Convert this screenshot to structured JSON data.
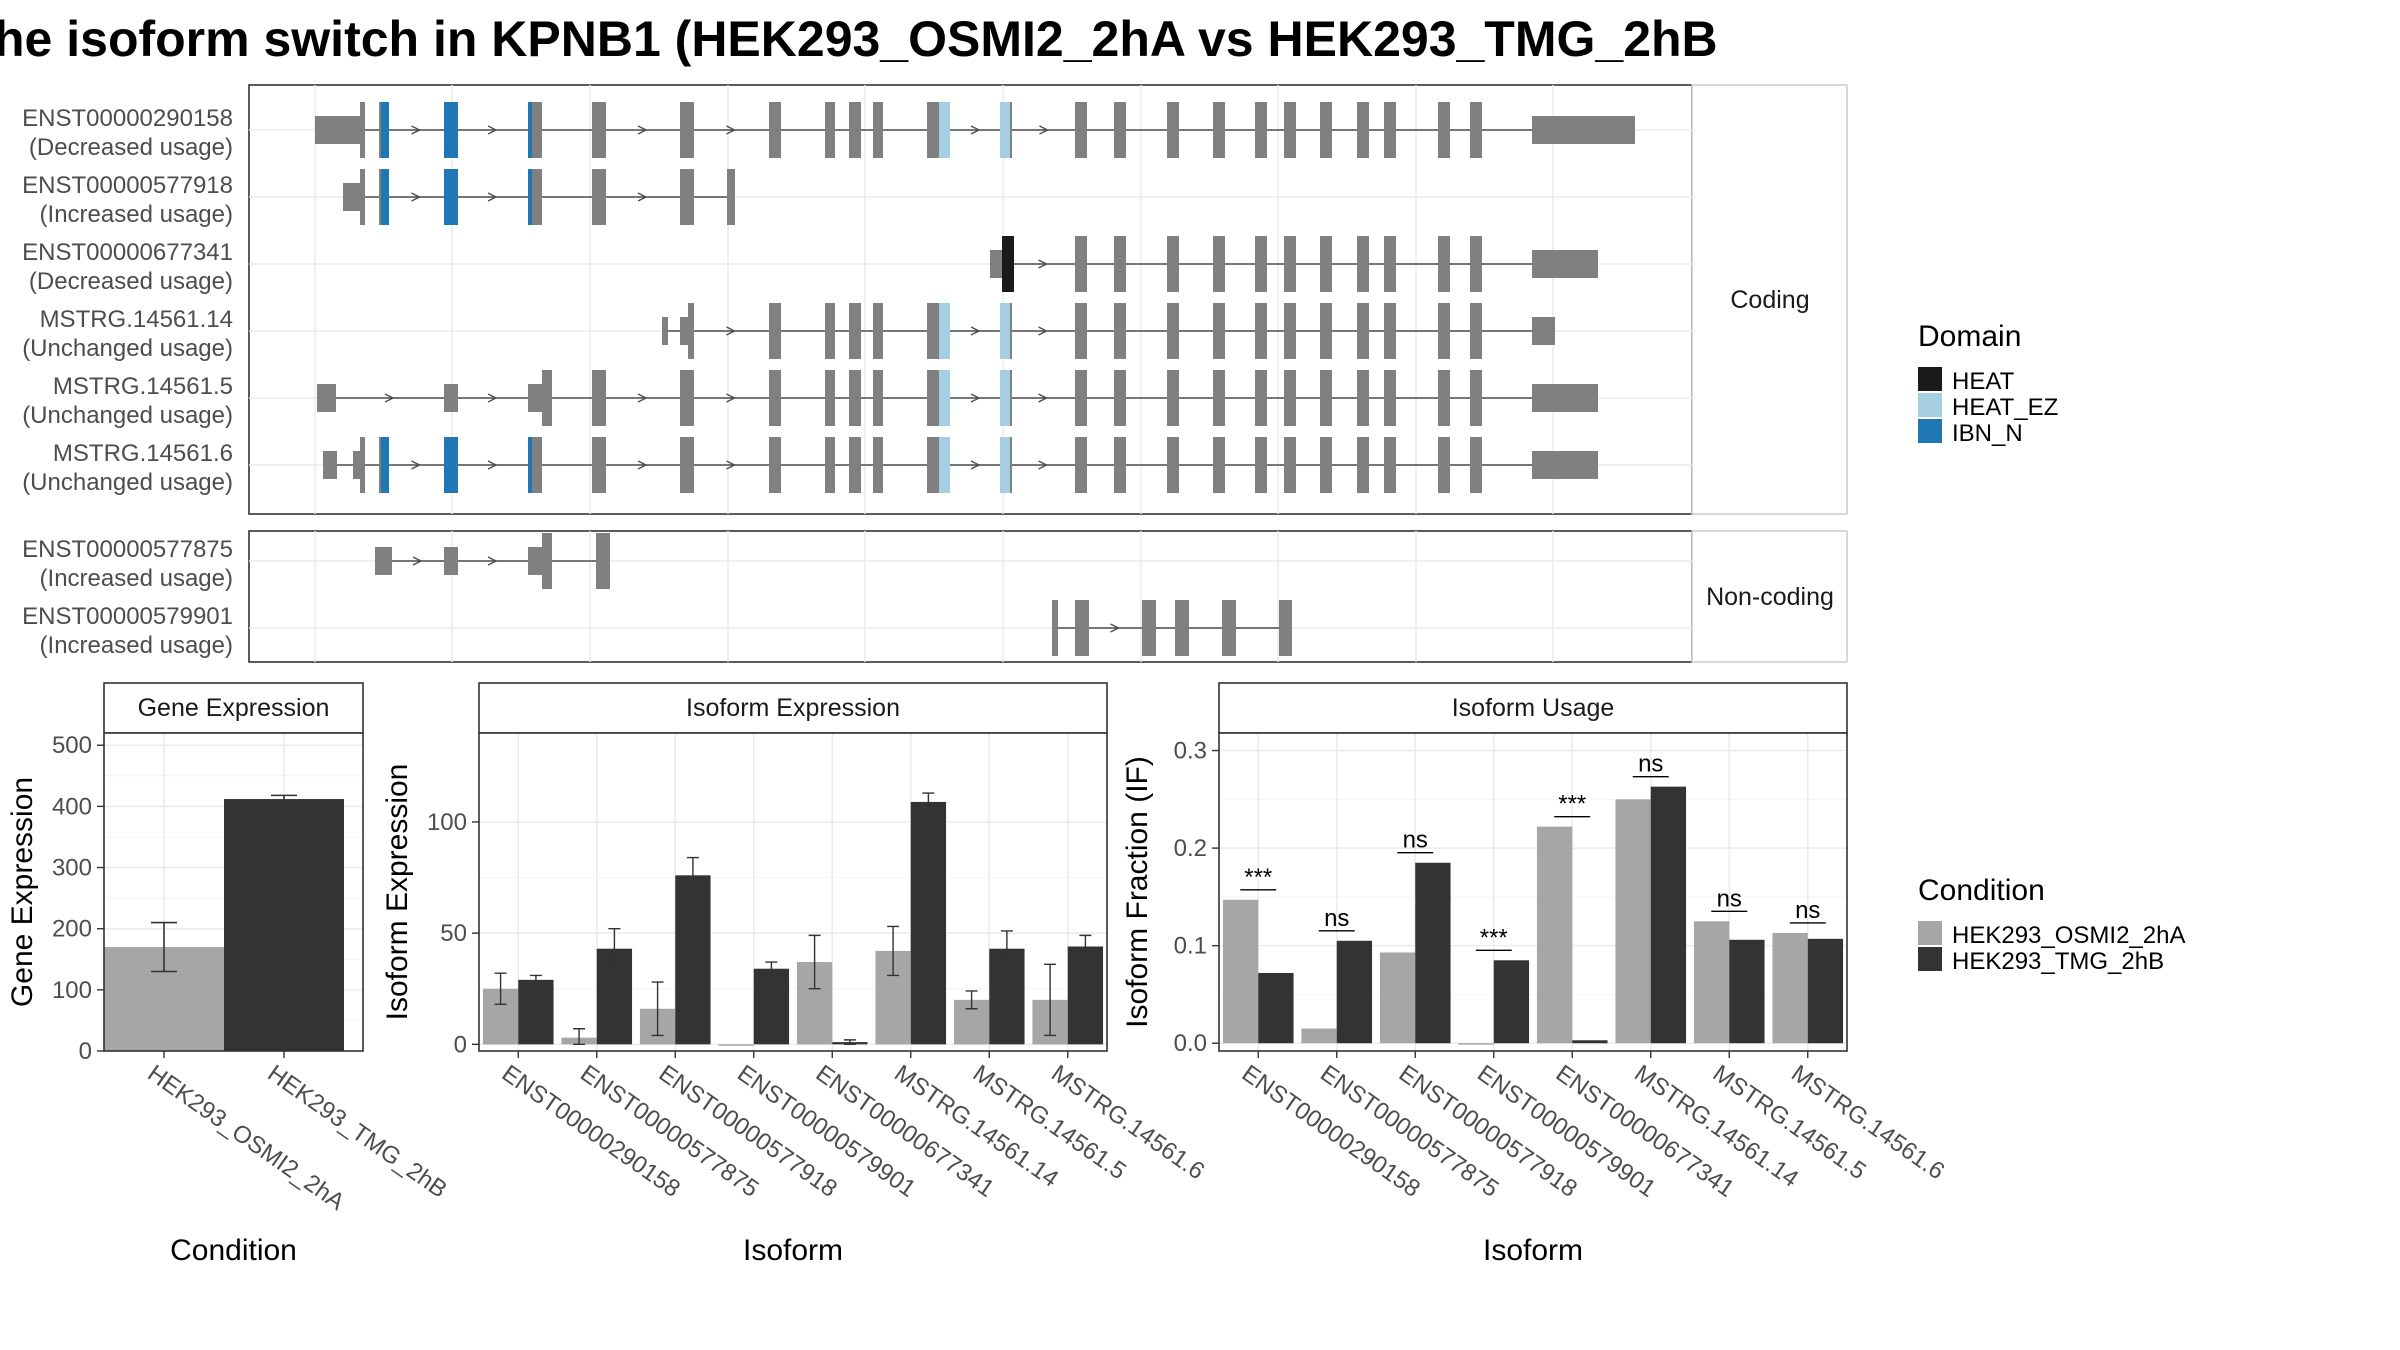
{
  "title": "he isoform switch in KPNB1 (HEK293_OSMI2_2hA vs HEK293_TMG_2hB",
  "colors": {
    "exon": "#808080",
    "heat": "#1a1a1a",
    "heat_ez": "#a6cee3",
    "ibn_n": "#1f78b4",
    "cond_a": "#a6a6a6",
    "cond_b": "#333333"
  },
  "structure": {
    "groups": [
      {
        "label": "Coding",
        "isoforms": [
          {
            "id": "ENST00000290158",
            "usage": "(Decreased usage)"
          },
          {
            "id": "ENST00000577918",
            "usage": "(Increased usage)"
          },
          {
            "id": "ENST00000677341",
            "usage": "(Decreased usage)"
          },
          {
            "id": "MSTRG.14561.14",
            "usage": "(Unchanged usage)"
          },
          {
            "id": "MSTRG.14561.5",
            "usage": "(Unchanged usage)"
          },
          {
            "id": "MSTRG.14561.6",
            "usage": "(Unchanged usage)"
          }
        ]
      },
      {
        "label": "Non-coding",
        "isoforms": [
          {
            "id": "ENST00000577875",
            "usage": "(Increased usage)"
          },
          {
            "id": "ENST00000579901",
            "usage": "(Increased usage)"
          }
        ]
      }
    ]
  },
  "domain_legend": {
    "title": "Domain",
    "items": [
      {
        "label": "HEAT",
        "color": "#1a1a1a"
      },
      {
        "label": "HEAT_EZ",
        "color": "#a6cee3"
      },
      {
        "label": "IBN_N",
        "color": "#1f78b4"
      }
    ]
  },
  "condition_legend": {
    "title": "Condition",
    "items": [
      {
        "label": "HEK293_OSMI2_2hA",
        "color": "#a6a6a6"
      },
      {
        "label": "HEK293_TMG_2hB",
        "color": "#333333"
      }
    ]
  },
  "chart_data": [
    {
      "type": "bar",
      "title": "Gene Expression",
      "xlabel": "Condition",
      "ylabel": "Gene Expression",
      "ylim": [
        0,
        520
      ],
      "yticks": [
        0,
        100,
        200,
        300,
        400,
        500
      ],
      "categories": [
        "HEK293_OSMI2_2hA",
        "HEK293_TMG_2hB"
      ],
      "values": [
        170,
        412
      ],
      "errors": [
        40,
        6
      ]
    },
    {
      "type": "bar",
      "title": "Isoform Expression",
      "xlabel": "Isoform",
      "ylabel": "Isoform Expression",
      "ylim": [
        -3,
        140
      ],
      "yticks": [
        0,
        50,
        100
      ],
      "categories": [
        "ENST00000290158",
        "ENST00000577875",
        "ENST00000577918",
        "ENST00000579901",
        "ENST00000677341",
        "MSTRG.14561.14",
        "MSTRG.14561.5",
        "MSTRG.14561.6"
      ],
      "series": [
        {
          "name": "HEK293_OSMI2_2hA",
          "values": [
            25,
            3,
            16,
            0,
            37,
            42,
            20,
            20
          ],
          "errors": [
            7,
            4,
            12,
            0,
            12,
            11,
            4,
            16
          ]
        },
        {
          "name": "HEK293_TMG_2hB",
          "values": [
            29,
            43,
            76,
            34,
            1,
            109,
            43,
            44
          ],
          "errors": [
            2,
            9,
            8,
            3,
            1,
            4,
            8,
            5
          ]
        }
      ]
    },
    {
      "type": "bar",
      "title": "Isoform Usage",
      "xlabel": "Isoform",
      "ylabel": "Isoform Fraction (IF)",
      "ylim": [
        -0.008,
        0.318
      ],
      "yticks": [
        "0.0",
        "0.1",
        "0.2",
        "0.3"
      ],
      "categories": [
        "ENST00000290158",
        "ENST00000577875",
        "ENST00000577918",
        "ENST00000579901",
        "ENST00000677341",
        "MSTRG.14561.14",
        "MSTRG.14561.5",
        "MSTRG.14561.6"
      ],
      "series": [
        {
          "name": "HEK293_OSMI2_2hA",
          "values": [
            0.147,
            0.015,
            0.093,
            0.0,
            0.222,
            0.25,
            0.125,
            0.113
          ]
        },
        {
          "name": "HEK293_TMG_2hB",
          "values": [
            0.072,
            0.105,
            0.185,
            0.085,
            0.003,
            0.263,
            0.106,
            0.107
          ]
        }
      ],
      "significance": [
        "***",
        "ns",
        "ns",
        "***",
        "***",
        "ns",
        "ns",
        "ns"
      ]
    }
  ]
}
